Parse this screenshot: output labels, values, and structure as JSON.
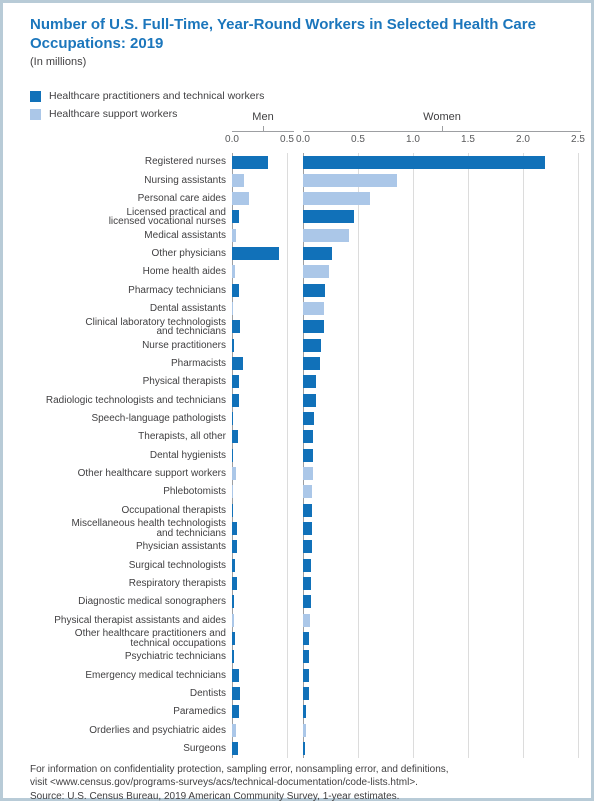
{
  "title": "Number of U.S. Full-Time, Year-Round Workers in Selected Health Care\nOccupations: 2019",
  "subtitle": "(In millions)",
  "colors": {
    "practitioners": "#1171b9",
    "support": "#abc7e8",
    "title_blue": "#1b76bc",
    "frame_border": "#b8cbd7",
    "axis_line": "#9d9fa2",
    "gridline": "#dcdcdc",
    "text": "#414042"
  },
  "legend": [
    {
      "label": "Healthcare practitioners and technical workers",
      "color_key": "practitioners"
    },
    {
      "label": "Healthcare support workers",
      "color_key": "support"
    }
  ],
  "footnote": "For information on confidentiality protection, sampling error, nonsampling error, and definitions,\nvisit <www.census.gov/programs-surveys/acs/technical-documentation/code-lists.html>.",
  "source": "Source: U.S. Census Bureau, 2019 American Community Survey, 1-year estimates.",
  "chart_data": {
    "type": "bar",
    "orientation": "horizontal-diverging-panels",
    "unit": "millions",
    "panels": [
      {
        "name": "Men",
        "ticks": [
          "0.0",
          "0.5"
        ],
        "xlim": [
          0,
          0.56
        ]
      },
      {
        "name": "Women",
        "ticks": [
          "0.0",
          "0.5",
          "1.0",
          "1.5",
          "2.0",
          "2.5"
        ],
        "xlim": [
          0,
          2.53
        ]
      }
    ],
    "grid": true,
    "legend_position": "top-left",
    "categories": [
      "Registered nurses",
      "Nursing assistants",
      "Personal care aides",
      "Licensed practical and\nlicensed vocational nurses",
      "Medical assistants",
      "Other physicians",
      "Home health aides",
      "Pharmacy technicians",
      "Dental assistants",
      "Clinical laboratory technologists\nand technicians",
      "Nurse practitioners",
      "Pharmacists",
      "Physical therapists",
      "Radiologic technologists and technicians",
      "Speech-language pathologists",
      "Therapists, all other",
      "Dental hygienists",
      "Other healthcare support workers",
      "Phlebotomists",
      "Occupational therapists",
      "Miscellaneous health technologists\nand technicians",
      "Physician assistants",
      "Surgical technologists",
      "Respiratory therapists",
      "Diagnostic medical sonographers",
      "Physical therapist assistants and aides",
      "Other healthcare practitioners and\ntechnical occupations",
      "Psychiatric technicians",
      "Emergency medical technicians",
      "Dentists",
      "Paramedics",
      "Orderlies and psychiatric aides",
      "Surgeons"
    ],
    "groups": [
      "p",
      "s",
      "s",
      "p",
      "s",
      "p",
      "s",
      "p",
      "s",
      "p",
      "p",
      "p",
      "p",
      "p",
      "p",
      "p",
      "p",
      "s",
      "s",
      "p",
      "p",
      "p",
      "p",
      "p",
      "p",
      "s",
      "p",
      "p",
      "p",
      "p",
      "p",
      "s",
      "p"
    ],
    "group_legend": {
      "p": "Healthcare practitioners and technical workers",
      "s": "Healthcare support workers"
    },
    "series": [
      {
        "name": "Men",
        "values": [
          0.33,
          0.11,
          0.15,
          0.06,
          0.04,
          0.43,
          0.03,
          0.06,
          0.01,
          0.075,
          0.02,
          0.1,
          0.065,
          0.06,
          0.01,
          0.05,
          0.01,
          0.04,
          0.01,
          0.01,
          0.045,
          0.045,
          0.03,
          0.045,
          0.015,
          0.02,
          0.03,
          0.02,
          0.06,
          0.07,
          0.065,
          0.04,
          0.05
        ]
      },
      {
        "name": "Women",
        "values": [
          2.2,
          0.85,
          0.61,
          0.46,
          0.42,
          0.26,
          0.24,
          0.2,
          0.19,
          0.19,
          0.16,
          0.15,
          0.12,
          0.115,
          0.1,
          0.095,
          0.09,
          0.09,
          0.085,
          0.08,
          0.08,
          0.08,
          0.075,
          0.075,
          0.075,
          0.06,
          0.055,
          0.05,
          0.05,
          0.05,
          0.03,
          0.025,
          0.02
        ]
      }
    ]
  }
}
